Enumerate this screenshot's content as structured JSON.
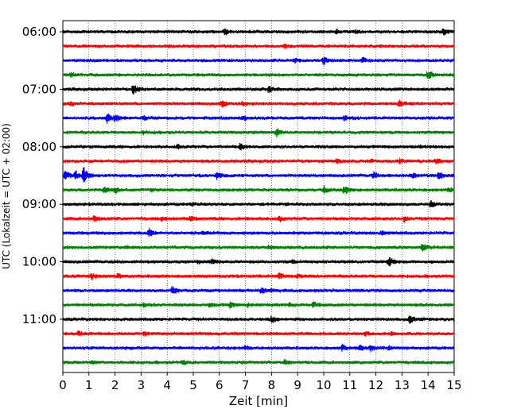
{
  "chart_data": {
    "type": "line",
    "title": "",
    "xlabel": "Zeit  [min]",
    "ylabel": "UTC (Lokalzeit = UTC + 02:00)",
    "xlim": [
      0,
      15
    ],
    "x_ticks": [
      0,
      1,
      2,
      3,
      4,
      5,
      6,
      7,
      8,
      9,
      10,
      11,
      12,
      13,
      14,
      15
    ],
    "x_tick_labels": [
      "0",
      "1",
      "2",
      "3",
      "4",
      "5",
      "6",
      "7",
      "8",
      "9",
      "10",
      "11",
      "12",
      "13",
      "14",
      "15"
    ],
    "grid": "vertical dotted",
    "y_tick_labels": [
      {
        "label": "06:00",
        "row": 0
      },
      {
        "label": "07:00",
        "row": 4
      },
      {
        "label": "08:00",
        "row": 8
      },
      {
        "label": "09:00",
        "row": 12
      },
      {
        "label": "10:00",
        "row": 16
      },
      {
        "label": "11:00",
        "row": 20
      }
    ],
    "colors": [
      "#000000",
      "#ff0000",
      "#0000ff",
      "#008000"
    ],
    "rows_per_hour": 4,
    "minutes_per_row": 15,
    "series": [
      {
        "start": "06:00",
        "color": "#000000",
        "events": [
          {
            "t": 6.2,
            "a": 1.3
          },
          {
            "t": 10.5,
            "a": 0.5
          },
          {
            "t": 11.2,
            "a": 0.4
          },
          {
            "t": 14.6,
            "a": 1.5
          }
        ]
      },
      {
        "start": "06:15",
        "color": "#ff0000",
        "events": [
          {
            "t": 8.5,
            "a": 0.5
          }
        ]
      },
      {
        "start": "06:30",
        "color": "#0000ff",
        "events": [
          {
            "t": 8.9,
            "a": 0.6
          },
          {
            "t": 10.0,
            "a": 1.5
          },
          {
            "t": 11.5,
            "a": 0.9
          }
        ]
      },
      {
        "start": "06:45",
        "color": "#008000",
        "events": [
          {
            "t": 0.3,
            "a": 0.6
          },
          {
            "t": 14.0,
            "a": 1.5
          }
        ]
      },
      {
        "start": "07:00",
        "color": "#000000",
        "events": [
          {
            "t": 2.7,
            "a": 2.0
          },
          {
            "t": 7.9,
            "a": 1.0
          }
        ]
      },
      {
        "start": "07:15",
        "color": "#ff0000",
        "events": [
          {
            "t": 0.3,
            "a": 0.6
          },
          {
            "t": 6.1,
            "a": 1.2
          },
          {
            "t": 6.9,
            "a": 0.7
          },
          {
            "t": 12.9,
            "a": 1.3
          }
        ]
      },
      {
        "start": "07:30",
        "color": "#0000ff",
        "events": [
          {
            "t": 1.7,
            "a": 2.0
          },
          {
            "t": 2.0,
            "a": 1.0
          },
          {
            "t": 3.1,
            "a": 0.8
          },
          {
            "t": 6.9,
            "a": 0.8
          },
          {
            "t": 10.8,
            "a": 0.9
          }
        ]
      },
      {
        "start": "07:45",
        "color": "#008000",
        "events": [
          {
            "t": 3.1,
            "a": 0.4
          },
          {
            "t": 8.2,
            "a": 1.4
          }
        ]
      },
      {
        "start": "08:00",
        "color": "#000000",
        "events": [
          {
            "t": 4.4,
            "a": 0.6
          },
          {
            "t": 6.8,
            "a": 1.2
          },
          {
            "t": 13.7,
            "a": 0.4
          }
        ]
      },
      {
        "start": "08:15",
        "color": "#ff0000",
        "events": [
          {
            "t": 10.5,
            "a": 0.7
          },
          {
            "t": 11.8,
            "a": 0.5
          },
          {
            "t": 12.9,
            "a": 0.8
          },
          {
            "t": 14.3,
            "a": 0.9
          }
        ]
      },
      {
        "start": "08:30",
        "color": "#0000ff",
        "events": [
          {
            "t": 0.1,
            "a": 1.8
          },
          {
            "t": 0.5,
            "a": 1.3
          },
          {
            "t": 0.8,
            "a": 3.0
          },
          {
            "t": 5.9,
            "a": 1.5
          },
          {
            "t": 11.9,
            "a": 1.0
          },
          {
            "t": 13.4,
            "a": 1.0
          },
          {
            "t": 14.4,
            "a": 1.4
          }
        ]
      },
      {
        "start": "08:45",
        "color": "#008000",
        "events": [
          {
            "t": 1.6,
            "a": 1.2
          },
          {
            "t": 2.0,
            "a": 1.0
          },
          {
            "t": 3.4,
            "a": 0.5
          },
          {
            "t": 10.0,
            "a": 1.2
          },
          {
            "t": 10.8,
            "a": 1.5
          },
          {
            "t": 14.8,
            "a": 0.7
          }
        ]
      },
      {
        "start": "09:00",
        "color": "#000000",
        "events": [
          {
            "t": 4.9,
            "a": 0.5
          },
          {
            "t": 14.1,
            "a": 1.2
          }
        ]
      },
      {
        "start": "09:15",
        "color": "#ff0000",
        "events": [
          {
            "t": 1.2,
            "a": 0.8
          },
          {
            "t": 3.8,
            "a": 0.7
          },
          {
            "t": 4.9,
            "a": 0.7
          },
          {
            "t": 8.3,
            "a": 0.9
          },
          {
            "t": 13.1,
            "a": 1.0
          }
        ]
      },
      {
        "start": "09:30",
        "color": "#0000ff",
        "events": [
          {
            "t": 3.3,
            "a": 1.3
          },
          {
            "t": 5.4,
            "a": 0.8
          },
          {
            "t": 12.2,
            "a": 0.9
          }
        ]
      },
      {
        "start": "09:45",
        "color": "#008000",
        "events": [
          {
            "t": 2.4,
            "a": 0.5
          },
          {
            "t": 7.9,
            "a": 0.7
          },
          {
            "t": 13.8,
            "a": 1.8
          }
        ]
      },
      {
        "start": "10:00",
        "color": "#000000",
        "events": [
          {
            "t": 5.2,
            "a": 0.5
          },
          {
            "t": 5.7,
            "a": 0.9
          },
          {
            "t": 8.8,
            "a": 0.6
          },
          {
            "t": 12.5,
            "a": 1.6
          }
        ]
      },
      {
        "start": "10:15",
        "color": "#ff0000",
        "events": [
          {
            "t": 1.1,
            "a": 1.0
          },
          {
            "t": 2.1,
            "a": 0.8
          },
          {
            "t": 8.3,
            "a": 1.0
          },
          {
            "t": 9.0,
            "a": 0.5
          }
        ]
      },
      {
        "start": "10:30",
        "color": "#0000ff",
        "events": [
          {
            "t": 4.2,
            "a": 1.5
          },
          {
            "t": 7.6,
            "a": 1.0
          },
          {
            "t": 8.0,
            "a": 0.8
          },
          {
            "t": 9.7,
            "a": 0.4
          }
        ]
      },
      {
        "start": "10:45",
        "color": "#008000",
        "events": [
          {
            "t": 3.1,
            "a": 0.7
          },
          {
            "t": 5.6,
            "a": 0.8
          },
          {
            "t": 6.4,
            "a": 1.0
          },
          {
            "t": 7.1,
            "a": 0.8
          },
          {
            "t": 8.7,
            "a": 0.6
          },
          {
            "t": 9.6,
            "a": 0.8
          }
        ]
      },
      {
        "start": "11:00",
        "color": "#000000",
        "events": [
          {
            "t": 8.0,
            "a": 1.2
          },
          {
            "t": 13.3,
            "a": 1.3
          }
        ]
      },
      {
        "start": "11:15",
        "color": "#ff0000",
        "events": [
          {
            "t": 0.6,
            "a": 1.1
          },
          {
            "t": 3.1,
            "a": 0.7
          },
          {
            "t": 11.6,
            "a": 0.6
          },
          {
            "t": 12.6,
            "a": 0.5
          }
        ]
      },
      {
        "start": "11:30",
        "color": "#0000ff",
        "events": [
          {
            "t": 7.0,
            "a": 0.6
          },
          {
            "t": 10.7,
            "a": 1.2
          },
          {
            "t": 11.4,
            "a": 0.9
          },
          {
            "t": 11.8,
            "a": 0.8
          },
          {
            "t": 12.5,
            "a": 0.6
          }
        ]
      },
      {
        "start": "11:45",
        "color": "#008000",
        "events": [
          {
            "t": 1.1,
            "a": 0.5
          },
          {
            "t": 4.6,
            "a": 0.9
          },
          {
            "t": 8.5,
            "a": 0.9
          }
        ]
      }
    ]
  }
}
